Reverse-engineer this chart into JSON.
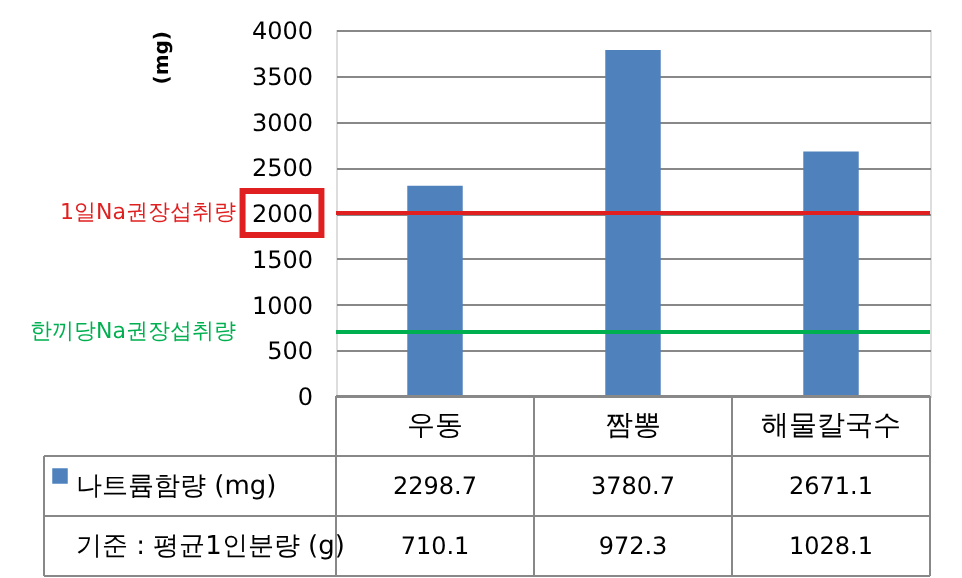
{
  "chart_data": {
    "type": "bar",
    "ylabel": "(mg)",
    "categories": [
      "우동",
      "짬뽕",
      "해물칼국수"
    ],
    "series": [
      {
        "name": "나트륨함량 (mg)",
        "color": "#4f81bd",
        "values": [
          2298.7,
          3780.7,
          2671.1
        ]
      }
    ],
    "ylim": [
      0,
      4000
    ],
    "yticks": [
      0,
      500,
      1000,
      1500,
      2000,
      2500,
      3000,
      3500,
      4000
    ],
    "grid": "y",
    "data_labels": true,
    "legend": "bottom",
    "ref_lines": [
      {
        "axis": "y",
        "value": 2000,
        "label": "1일Na권장섭취량",
        "color": "#e02020"
      },
      {
        "axis": "y",
        "value": 700,
        "label": "한끼당Na권장섭취량",
        "color": "#00b050"
      }
    ],
    "annotations": [
      "기준 : 평균1인분량 (g)",
      "710.1",
      "972.3",
      "1028.1"
    ]
  }
}
